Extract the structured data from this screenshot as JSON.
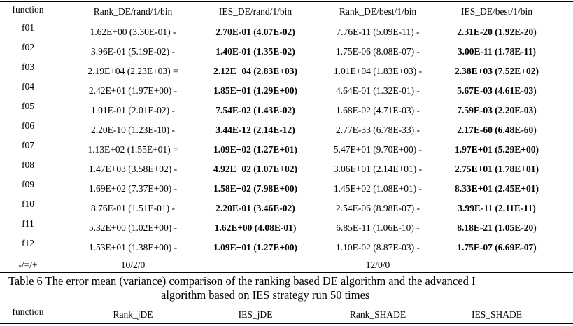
{
  "table1": {
    "header": [
      "function",
      "Rank_DE/rand/1/bin",
      "IES_DE/rand/1/bin",
      "Rank_DE/best/1/bin",
      "IES_DE/best/1/bin"
    ],
    "rows": [
      [
        "f01",
        "1.62E+00 (3.30E-01) -",
        "2.70E-01 (4.07E-02)",
        "7.76E-11 (5.09E-11) -",
        "2.31E-20 (1.92E-20)"
      ],
      [
        "f02",
        "3.96E-01 (5.19E-02) -",
        "1.40E-01 (1.35E-02)",
        "1.75E-06 (8.08E-07) -",
        "3.00E-11 (1.78E-11)"
      ],
      [
        "f03",
        "2.19E+04 (2.23E+03) =",
        "2.12E+04 (2.83E+03)",
        "1.01E+04 (1.83E+03) -",
        "2.38E+03 (7.52E+02)"
      ],
      [
        "f04",
        "2.42E+01 (1.97E+00) -",
        "1.85E+01 (1.29E+00)",
        "4.64E-01 (1.32E-01) -",
        "5.67E-03 (4.61E-03)"
      ],
      [
        "f05",
        "1.01E-01 (2.01E-02) -",
        "7.54E-02 (1.43E-02)",
        "1.68E-02 (4.71E-03) -",
        "7.59E-03 (2.20E-03)"
      ],
      [
        "f06",
        "2.20E-10 (1.23E-10) -",
        "3.44E-12 (2.14E-12)",
        "2.77E-33 (6.78E-33) -",
        "2.17E-60 (6.48E-60)"
      ],
      [
        "f07",
        "1.13E+02 (1.55E+01) =",
        "1.09E+02 (1.27E+01)",
        "5.47E+01 (9.70E+00) -",
        "1.97E+01 (5.29E+00)"
      ],
      [
        "f08",
        "1.47E+03 (3.58E+02) -",
        "4.92E+02 (1.07E+02)",
        "3.06E+01 (2.14E+01) -",
        "2.75E+01 (1.78E+01)"
      ],
      [
        "f09",
        "1.69E+02 (7.37E+00) -",
        "1.58E+02 (7.98E+00)",
        "1.45E+02 (1.08E+01) -",
        "8.33E+01 (2.45E+01)"
      ],
      [
        "f10",
        "8.76E-01 (1.51E-01) -",
        "2.20E-01 (3.46E-02)",
        "2.54E-06 (8.98E-07) -",
        "3.99E-11 (2.11E-11)"
      ],
      [
        "f11",
        "5.32E+00 (1.02E+00) -",
        "1.62E+00 (4.08E-01)",
        "6.85E-11 (1.06E-10) -",
        "8.18E-21 (1.05E-20)"
      ],
      [
        "f12",
        "1.53E+01 (1.38E+00) -",
        "1.09E+01 (1.27E+00)",
        "1.10E-02 (8.87E-03) -",
        "1.75E-07 (6.69E-07)"
      ]
    ],
    "summary": [
      "-/=/+",
      "10/2/0",
      "12/0/0"
    ]
  },
  "caption": [
    "Table 6 The error mean (variance) comparison of the ranking based DE algorithm and the advanced I",
    "algorithm based on IES strategy run 50 times"
  ],
  "table2": {
    "header": [
      "function",
      "Rank_jDE",
      "IES_jDE",
      "Rank_SHADE",
      "IES_SHADE"
    ]
  }
}
